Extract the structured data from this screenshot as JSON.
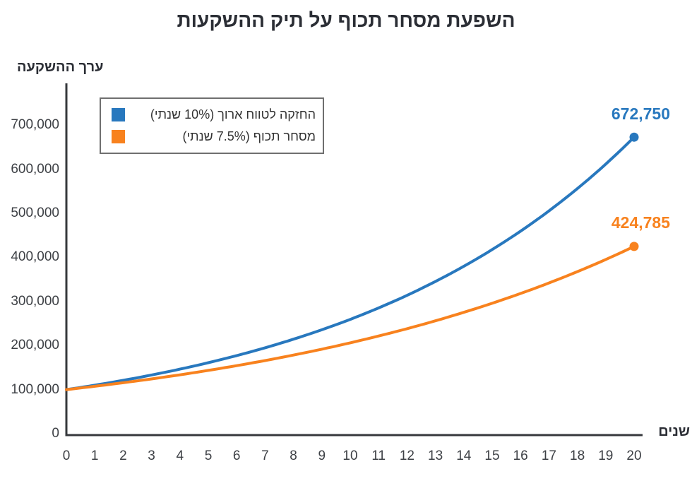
{
  "chart_data": {
    "type": "line",
    "title": "השפעת מסחר תכוף על תיק ההשקעות",
    "xlabel": "שנים",
    "ylabel": "ערך ההשקעה",
    "grid": false,
    "legend_position": "top-left",
    "xlim": [
      0,
      20
    ],
    "ylim": [
      0,
      700000
    ],
    "x": [
      0,
      1,
      2,
      3,
      4,
      5,
      6,
      7,
      8,
      9,
      10,
      11,
      12,
      13,
      14,
      15,
      16,
      17,
      18,
      19,
      20
    ],
    "xticks": [
      "0",
      "1",
      "2",
      "3",
      "4",
      "5",
      "6",
      "7",
      "8",
      "9",
      "10",
      "11",
      "12",
      "13",
      "14",
      "15",
      "16",
      "17",
      "18",
      "19",
      "20"
    ],
    "ytick_values": [
      0,
      100000,
      200000,
      300000,
      400000,
      500000,
      600000,
      700000
    ],
    "yticks": [
      "0",
      "100,000",
      "200,000",
      "300,000",
      "400,000",
      "500,000",
      "600,000",
      "700,000"
    ],
    "axis_color": "#36383c",
    "series": [
      {
        "name": "החזקה לטווח ארוך (10% שנתי)",
        "color": "#2878BE",
        "values": [
          100000,
          110000,
          121000,
          133100,
          146410,
          161051,
          177156,
          194872,
          214359,
          235795,
          259374,
          285312,
          313843,
          345227,
          379750,
          417725,
          459497,
          505447,
          555992,
          611591,
          672750
        ],
        "end_label": "672,750"
      },
      {
        "name": "מסחר תכוף (7.5% שנתי)",
        "color": "#F8821E",
        "values": [
          100000,
          107500,
          115563,
          124230,
          133547,
          143563,
          154330,
          165905,
          178348,
          191724,
          206103,
          221561,
          238178,
          256041,
          275244,
          295888,
          318079,
          341935,
          367580,
          395149,
          424785
        ],
        "end_label": "424,785"
      }
    ]
  }
}
